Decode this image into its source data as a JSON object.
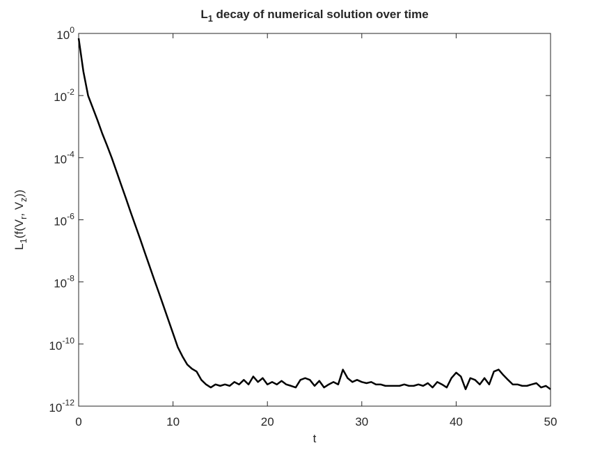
{
  "chart_data": {
    "type": "line",
    "title": [
      "L",
      "1",
      " decay of numerical solution over time"
    ],
    "xlabel": "t",
    "ylabel": [
      "L",
      "1",
      "(f(V",
      "r",
      ", V",
      "z",
      "))"
    ],
    "log_y": true,
    "xlim": [
      0,
      50
    ],
    "xticks": [
      0,
      10,
      20,
      30,
      40,
      50
    ],
    "ylim": [
      1e-12,
      1
    ],
    "yticks": [
      {
        "value": 1e-12,
        "label": [
          "10",
          "-12"
        ]
      },
      {
        "value": 1e-10,
        "label": [
          "10",
          "-10"
        ]
      },
      {
        "value": 1e-08,
        "label": [
          "10",
          "-8"
        ]
      },
      {
        "value": 1e-06,
        "label": [
          "10",
          "-6"
        ]
      },
      {
        "value": 0.0001,
        "label": [
          "10",
          "-4"
        ]
      },
      {
        "value": 0.01,
        "label": [
          "10",
          "-2"
        ]
      },
      {
        "value": 1,
        "label": [
          "10",
          "0"
        ]
      }
    ],
    "x": [
      0,
      0.5,
      1,
      1.5,
      2,
      2.5,
      3,
      3.5,
      4,
      4.5,
      5,
      5.5,
      6,
      6.5,
      7,
      7.5,
      8,
      8.5,
      9,
      9.5,
      10,
      10.5,
      11,
      11.5,
      12,
      12.5,
      13,
      13.5,
      14,
      14.5,
      15,
      15.5,
      16,
      16.5,
      17,
      17.5,
      18,
      18.5,
      19,
      19.5,
      20,
      20.5,
      21,
      21.5,
      22,
      22.5,
      23,
      23.5,
      24,
      24.5,
      25,
      25.5,
      26,
      26.5,
      27,
      27.5,
      28,
      28.5,
      29,
      29.5,
      30,
      30.5,
      31,
      31.5,
      32,
      32.5,
      33,
      33.5,
      34,
      34.5,
      35,
      35.5,
      36,
      36.5,
      37,
      37.5,
      38,
      38.5,
      39,
      39.5,
      40,
      40.5,
      41,
      41.5,
      42,
      42.5,
      43,
      43.5,
      44,
      44.5,
      45,
      45.5,
      46,
      46.5,
      47,
      47.5,
      48,
      48.5,
      49,
      49.5,
      50
    ],
    "series": [
      {
        "color": "#000000",
        "values": [
          0.7,
          0.06,
          0.01,
          0.004,
          0.0016,
          0.0006,
          0.00025,
          0.0001,
          3.7e-05,
          1.35e-05,
          5e-06,
          1.8e-06,
          6.7e-07,
          2.5e-07,
          9e-08,
          3.3e-08,
          1.2e-08,
          4.5e-09,
          1.65e-09,
          6e-10,
          2.2e-10,
          8e-11,
          4e-11,
          2.2e-11,
          1.6e-11,
          1.3e-11,
          7e-12,
          5e-12,
          4e-12,
          5e-12,
          4.5e-12,
          5e-12,
          4.5e-12,
          6e-12,
          5e-12,
          7e-12,
          5e-12,
          9e-12,
          6e-12,
          8e-12,
          5e-12,
          6e-12,
          5e-12,
          6.5e-12,
          5e-12,
          4.5e-12,
          4e-12,
          7e-12,
          8e-12,
          7e-12,
          4.5e-12,
          6.5e-12,
          4e-12,
          5e-12,
          6e-12,
          5e-12,
          1.5e-11,
          8e-12,
          6e-12,
          7e-12,
          6e-12,
          5.5e-12,
          6e-12,
          5e-12,
          5e-12,
          4.5e-12,
          4.5e-12,
          4.5e-12,
          4.5e-12,
          5e-12,
          4.5e-12,
          4.5e-12,
          5e-12,
          4.5e-12,
          5.5e-12,
          4e-12,
          6e-12,
          5e-12,
          4e-12,
          8e-12,
          1.2e-11,
          9e-12,
          3.5e-12,
          8e-12,
          7e-12,
          5e-12,
          8e-12,
          5e-12,
          1.3e-11,
          1.5e-11,
          1e-11,
          7e-12,
          5e-12,
          5e-12,
          4.5e-12,
          4.5e-12,
          5e-12,
          5.5e-12,
          4e-12,
          4.5e-12,
          3.5e-12
        ]
      }
    ]
  }
}
